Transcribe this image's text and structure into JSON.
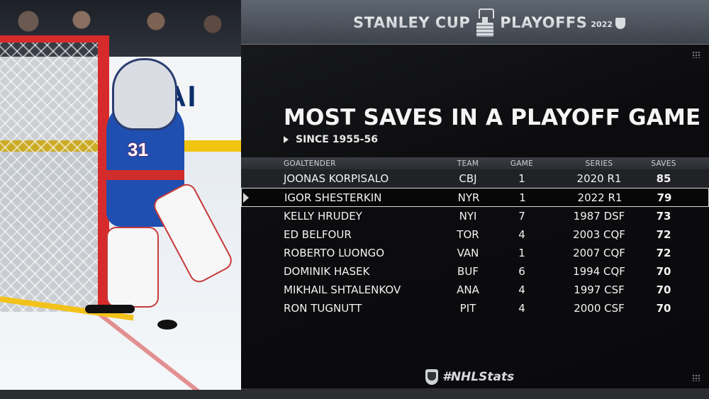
{
  "header": {
    "logo_left": "STANLEY CUP",
    "logo_right": "PLAYOFFS",
    "logo_year": "2022"
  },
  "photo": {
    "jersey_number": "31",
    "board_text": "DAI"
  },
  "title": "MOST SAVES IN A PLAYOFF GAME",
  "subtitle": "SINCE 1955-56",
  "table": {
    "columns": {
      "name": "GOALTENDER",
      "team": "TEAM",
      "game": "GAME",
      "series": "SERIES",
      "saves": "SAVES"
    },
    "rows": [
      {
        "name": "JOONAS KORPISALO",
        "team": "CBJ",
        "game": "1",
        "series": "2020 R1",
        "saves": "85"
      },
      {
        "name": "IGOR SHESTERKIN",
        "team": "NYR",
        "game": "1",
        "series": "2022 R1",
        "saves": "79"
      },
      {
        "name": "KELLY HRUDEY",
        "team": "NYI",
        "game": "7",
        "series": "1987 DSF",
        "saves": "73"
      },
      {
        "name": "ED BELFOUR",
        "team": "TOR",
        "game": "4",
        "series": "2003 CQF",
        "saves": "72"
      },
      {
        "name": "ROBERTO LUONGO",
        "team": "VAN",
        "game": "1",
        "series": "2007 CQF",
        "saves": "72"
      },
      {
        "name": "DOMINIK HASEK",
        "team": "BUF",
        "game": "6",
        "series": "1994 CQF",
        "saves": "70"
      },
      {
        "name": "MIKHAIL SHTALENKOV",
        "team": "ANA",
        "game": "4",
        "series": "1997 CSF",
        "saves": "70"
      },
      {
        "name": "RON TUGNUTT",
        "team": "PIT",
        "game": "4",
        "series": "2000 CSF",
        "saves": "70"
      }
    ]
  },
  "footer": {
    "hashtag": "#NHLStats"
  },
  "colors": {
    "background": "#0e0e10",
    "topbar": "#4e555e",
    "highlight_border": "#d8d8d8"
  }
}
